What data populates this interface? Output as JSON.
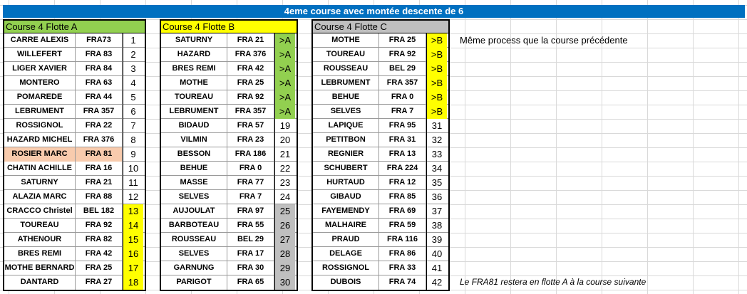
{
  "title": "4eme course avec montée descente de 6",
  "notes": {
    "top": "Même process que la course précédente",
    "bottom": "Le FRA81 restera en flotte A à la course suivante"
  },
  "colors": {
    "title_bg": "#0070c0",
    "fleet_a_header": "#92d050",
    "fleet_b_header": "#ffff00",
    "fleet_c_header": "#bfbfbf",
    "highlight_yellow": "#ffff00",
    "highlight_grey": "#bfbfbf",
    "highlight_green": "#92d050",
    "highlight_salmon": "#f8cbad"
  },
  "fleets": [
    {
      "header": "Course 4 Flotte A",
      "rows": [
        {
          "name": "CARRE ALEXIS",
          "sail": "FRA73",
          "num": "1"
        },
        {
          "name": "WILLEFERT",
          "sail": "FRA 83",
          "num": "2"
        },
        {
          "name": "LIGER XAVIER",
          "sail": "FRA 84",
          "num": "3"
        },
        {
          "name": "MONTERO",
          "sail": "FRA 63",
          "num": "4"
        },
        {
          "name": "POMAREDE",
          "sail": "FRA 44",
          "num": "5"
        },
        {
          "name": "LEBRUMENT",
          "sail": "FRA 357",
          "num": "6"
        },
        {
          "name": "ROSSIGNOL",
          "sail": "FRA 22",
          "num": "7"
        },
        {
          "name": "HAZARD MICHEL",
          "sail": "FRA 376",
          "num": "8"
        },
        {
          "name": "ROSIER MARC",
          "sail": "FRA 81",
          "num": "9",
          "hl": "salmon"
        },
        {
          "name": "CHATIN ACHILLE",
          "sail": "FRA 16",
          "num": "10"
        },
        {
          "name": "SATURNY",
          "sail": "FRA 21",
          "num": "11"
        },
        {
          "name": "ALAZIA MARC",
          "sail": "FRA 88",
          "num": "12"
        },
        {
          "name": "CRACCO Christel",
          "sail": "BEL 182",
          "num": "13",
          "numhl": "yellow"
        },
        {
          "name": "TOUREAU",
          "sail": "FRA 92",
          "num": "14",
          "numhl": "yellow"
        },
        {
          "name": "ATHENOUR",
          "sail": "FRA 82",
          "num": "15",
          "numhl": "yellow"
        },
        {
          "name": "BRES REMI",
          "sail": "FRA 42",
          "num": "16",
          "numhl": "yellow"
        },
        {
          "name": "MOTHE BERNARD",
          "sail": "FRA 25",
          "num": "17",
          "numhl": "yellow"
        },
        {
          "name": "DANTARD",
          "sail": "FRA 27",
          "num": "18",
          "numhl": "yellow"
        }
      ]
    },
    {
      "header": "Course 4 Flotte B",
      "rows": [
        {
          "name": "SATURNY",
          "sail": "FRA 21",
          "num": ">A",
          "numhl": "green"
        },
        {
          "name": "HAZARD",
          "sail": "FRA 376",
          "num": ">A",
          "numhl": "green"
        },
        {
          "name": "BRES REMI",
          "sail": "FRA 42",
          "num": ">A",
          "numhl": "green"
        },
        {
          "name": "MOTHE",
          "sail": "FRA 25",
          "num": ">A",
          "numhl": "green"
        },
        {
          "name": "TOUREAU",
          "sail": "FRA 92",
          "num": ">A",
          "numhl": "green"
        },
        {
          "name": "LEBRUMENT",
          "sail": "FRA 357",
          "num": ">A",
          "numhl": "green"
        },
        {
          "name": "BIDAUD",
          "sail": "FRA 57",
          "num": "19"
        },
        {
          "name": "VILMIN",
          "sail": "FRA 23",
          "num": "20"
        },
        {
          "name": "BESSON",
          "sail": "FRA 186",
          "num": "21"
        },
        {
          "name": "BEHUE",
          "sail": "FRA 0",
          "num": "22"
        },
        {
          "name": "MASSE",
          "sail": "FRA 77",
          "num": "23"
        },
        {
          "name": "SELVES",
          "sail": "FRA 7",
          "num": "24"
        },
        {
          "name": "AUJOULAT",
          "sail": "FRA 97",
          "num": "25",
          "numhl": "grey"
        },
        {
          "name": "BARBOTEAU",
          "sail": "FRA 55",
          "num": "26",
          "numhl": "grey"
        },
        {
          "name": "ROUSSEAU",
          "sail": "BEL 29",
          "num": "27",
          "numhl": "grey"
        },
        {
          "name": "SELVES",
          "sail": "FRA 17",
          "num": "28",
          "numhl": "grey"
        },
        {
          "name": "GARNUNG",
          "sail": "FRA 30",
          "num": "29",
          "numhl": "grey"
        },
        {
          "name": "PARIGOT",
          "sail": "FRA 65",
          "num": "30",
          "numhl": "grey"
        }
      ]
    },
    {
      "header": "Course 4 Flotte C",
      "rows": [
        {
          "name": "MOTHE",
          "sail": "FRA 25",
          "num": ">B",
          "numhl": "yellow"
        },
        {
          "name": "TOUREAU",
          "sail": "FRA 92",
          "num": ">B",
          "numhl": "yellow"
        },
        {
          "name": "ROUSSEAU",
          "sail": "BEL 29",
          "num": ">B",
          "numhl": "yellow"
        },
        {
          "name": "LEBRUMENT",
          "sail": "FRA 357",
          "num": ">B",
          "numhl": "yellow"
        },
        {
          "name": "BEHUE",
          "sail": "FRA 0",
          "num": ">B",
          "numhl": "yellow"
        },
        {
          "name": "SELVES",
          "sail": "FRA 7",
          "num": ">B",
          "numhl": "yellow"
        },
        {
          "name": "LAPIQUE",
          "sail": "FRA 95",
          "num": "31"
        },
        {
          "name": "PETITBON",
          "sail": "FRA 31",
          "num": "32"
        },
        {
          "name": "REGNIER",
          "sail": "FRA 13",
          "num": "33"
        },
        {
          "name": "SCHUBERT",
          "sail": "FRA 224",
          "num": "34"
        },
        {
          "name": "HURTAUD",
          "sail": "FRA 12",
          "num": "35"
        },
        {
          "name": "GIBAUD",
          "sail": "FRA 85",
          "num": "36"
        },
        {
          "name": "FAYEMENDY",
          "sail": "FRA 69",
          "num": "37"
        },
        {
          "name": "MALHAIRE",
          "sail": "FRA 59",
          "num": "38"
        },
        {
          "name": "PRAUD",
          "sail": "FRA 116",
          "num": "39"
        },
        {
          "name": "DELAGE",
          "sail": "FRA 86",
          "num": "40"
        },
        {
          "name": "ROSSIGNOL",
          "sail": "FRA 33",
          "num": "41"
        },
        {
          "name": "DUBOIS",
          "sail": "FRA 74",
          "num": "42"
        }
      ]
    }
  ]
}
